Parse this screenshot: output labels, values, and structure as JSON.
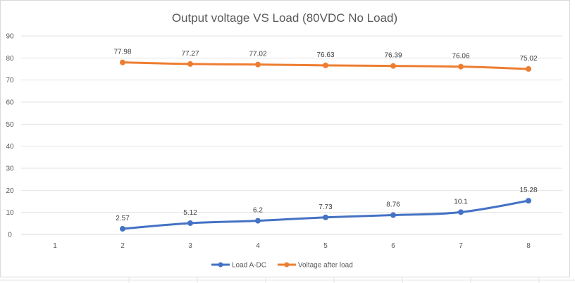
{
  "chart_data": {
    "type": "line",
    "title": "Output voltage VS Load (80VDC No Load)",
    "categories": [
      "1",
      "2",
      "3",
      "4",
      "5",
      "6",
      "7",
      "8"
    ],
    "yticks": [
      "0",
      "10",
      "20",
      "30",
      "40",
      "50",
      "60",
      "70",
      "80",
      "90"
    ],
    "ylim": [
      0,
      90
    ],
    "grid": true,
    "legend_position": "bottom",
    "series": [
      {
        "name": "Load A-DC",
        "color": "#4472C4",
        "values": [
          null,
          2.57,
          5.12,
          6.2,
          7.73,
          8.76,
          10.1,
          15.28
        ],
        "labels": [
          null,
          "2.57",
          "5.12",
          "6.2",
          "7.73",
          "8.76",
          "10.1",
          "15.28"
        ]
      },
      {
        "name": "Voltage after load",
        "color": "#ED7D31",
        "values": [
          null,
          77.98,
          77.27,
          77.02,
          76.63,
          76.39,
          76.06,
          75.02
        ],
        "labels": [
          null,
          "77.98",
          "77.27",
          "77.02",
          "76.63",
          "76.39",
          "76.06",
          "75.02"
        ]
      }
    ]
  }
}
